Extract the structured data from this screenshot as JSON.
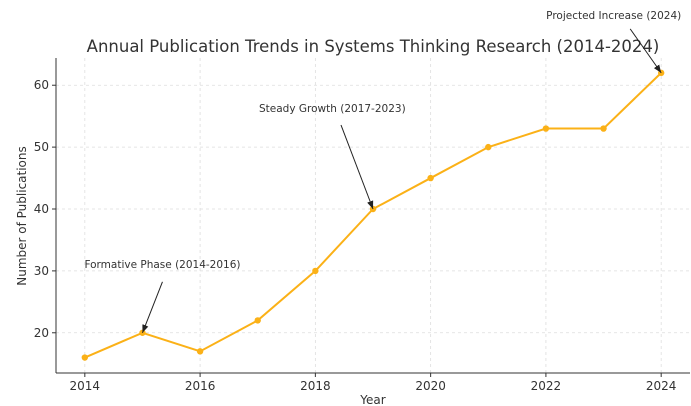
{
  "chart_data": {
    "type": "line",
    "title": "Annual Publication Trends in Systems Thinking Research (2014-2024)",
    "x_label": "Year",
    "y_label": "Number of Publications",
    "x": [
      2014,
      2015,
      2016,
      2017,
      2018,
      2019,
      2020,
      2021,
      2022,
      2023,
      2024
    ],
    "series": [
      {
        "name": "Publications",
        "color": "#fbb117",
        "values": [
          16,
          20,
          17,
          22,
          30,
          40,
          45,
          50,
          53,
          53,
          62
        ]
      }
    ],
    "xlim": [
      2013.5,
      2024.5
    ],
    "xticks": [
      2014,
      2016,
      2018,
      2020,
      2022,
      2024
    ],
    "ylim": [
      13.5,
      64.4
    ],
    "yticks": [
      20,
      30,
      40,
      50,
      60
    ],
    "grid": true,
    "annotations": [
      {
        "text": "Formative Phase (2014-2016)",
        "x": 2015,
        "y": 20
      },
      {
        "text": "Steady Growth (2017-2023)",
        "x": 2019,
        "y": 40
      },
      {
        "text": "Projected Increase (2024)",
        "x": 2024,
        "y": 62
      }
    ]
  }
}
